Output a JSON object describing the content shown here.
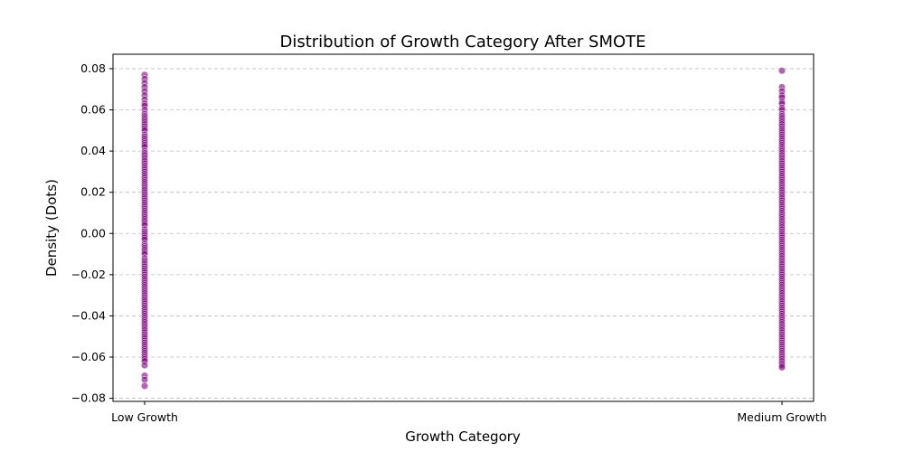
{
  "chart_data": {
    "type": "scatter",
    "title": "Distribution of Growth Category After SMOTE",
    "xlabel": "Growth Category",
    "ylabel": "Density (Dots)",
    "categories": [
      "Low Growth",
      "Medium Growth"
    ],
    "ylim": [
      -0.0815,
      0.087
    ],
    "yticks": [
      0.08,
      0.06,
      0.04,
      0.02,
      0.0,
      -0.02,
      -0.04,
      -0.06,
      -0.08
    ],
    "ytick_labels": [
      "0.08",
      "0.06",
      "0.04",
      "0.02",
      "0.00",
      "−0.02",
      "−0.04",
      "−0.06",
      "−0.08"
    ],
    "grid": "y-dashed",
    "marker_color": "#800080",
    "series": [
      {
        "category": "Low Growth",
        "values": [
          0.077,
          0.075,
          0.073,
          0.071,
          0.069,
          0.067,
          0.065,
          0.063,
          0.062,
          0.06,
          0.058,
          0.057,
          0.056,
          0.055,
          0.054,
          0.053,
          0.052,
          0.051,
          0.05,
          0.048,
          0.047,
          0.046,
          0.045,
          0.044,
          0.043,
          0.042,
          0.04,
          0.039,
          0.038,
          0.037,
          0.036,
          0.035,
          0.034,
          0.033,
          0.032,
          0.031,
          0.03,
          0.029,
          0.028,
          0.027,
          0.026,
          0.025,
          0.024,
          0.023,
          0.022,
          0.021,
          0.02,
          0.019,
          0.018,
          0.017,
          0.016,
          0.015,
          0.014,
          0.013,
          0.012,
          0.011,
          0.01,
          0.009,
          0.008,
          0.007,
          0.006,
          0.005,
          0.004,
          0.002,
          0.001,
          0.0,
          -0.001,
          -0.002,
          -0.003,
          -0.005,
          -0.006,
          -0.007,
          -0.008,
          -0.009,
          -0.01,
          -0.012,
          -0.013,
          -0.014,
          -0.015,
          -0.016,
          -0.017,
          -0.018,
          -0.019,
          -0.02,
          -0.021,
          -0.022,
          -0.023,
          -0.024,
          -0.025,
          -0.026,
          -0.027,
          -0.028,
          -0.029,
          -0.03,
          -0.031,
          -0.032,
          -0.033,
          -0.034,
          -0.035,
          -0.036,
          -0.037,
          -0.038,
          -0.039,
          -0.04,
          -0.041,
          -0.042,
          -0.043,
          -0.044,
          -0.045,
          -0.046,
          -0.047,
          -0.048,
          -0.049,
          -0.05,
          -0.051,
          -0.052,
          -0.053,
          -0.054,
          -0.055,
          -0.056,
          -0.057,
          -0.058,
          -0.059,
          -0.06,
          -0.061,
          -0.062,
          -0.064,
          -0.069,
          -0.071,
          -0.074
        ]
      },
      {
        "category": "Medium Growth",
        "values": [
          0.079,
          0.071,
          0.069,
          0.067,
          0.066,
          0.064,
          0.063,
          0.061,
          0.06,
          0.058,
          0.057,
          0.056,
          0.055,
          0.054,
          0.053,
          0.052,
          0.051,
          0.05,
          0.049,
          0.048,
          0.047,
          0.046,
          0.045,
          0.044,
          0.043,
          0.042,
          0.041,
          0.04,
          0.039,
          0.038,
          0.037,
          0.036,
          0.035,
          0.034,
          0.033,
          0.032,
          0.031,
          0.03,
          0.029,
          0.028,
          0.027,
          0.026,
          0.025,
          0.024,
          0.023,
          0.022,
          0.021,
          0.02,
          0.019,
          0.018,
          0.017,
          0.016,
          0.015,
          0.014,
          0.013,
          0.012,
          0.011,
          0.01,
          0.009,
          0.008,
          0.007,
          0.006,
          0.005,
          0.004,
          0.003,
          0.002,
          0.001,
          0.0,
          -0.001,
          -0.002,
          -0.003,
          -0.004,
          -0.005,
          -0.006,
          -0.007,
          -0.008,
          -0.009,
          -0.01,
          -0.011,
          -0.012,
          -0.013,
          -0.014,
          -0.015,
          -0.016,
          -0.017,
          -0.018,
          -0.019,
          -0.02,
          -0.021,
          -0.022,
          -0.023,
          -0.024,
          -0.025,
          -0.026,
          -0.027,
          -0.028,
          -0.029,
          -0.03,
          -0.031,
          -0.032,
          -0.033,
          -0.034,
          -0.035,
          -0.036,
          -0.037,
          -0.038,
          -0.039,
          -0.04,
          -0.041,
          -0.042,
          -0.043,
          -0.044,
          -0.045,
          -0.046,
          -0.047,
          -0.048,
          -0.049,
          -0.05,
          -0.051,
          -0.052,
          -0.053,
          -0.054,
          -0.055,
          -0.056,
          -0.057,
          -0.058,
          -0.059,
          -0.06,
          -0.061,
          -0.062,
          -0.063,
          -0.064,
          -0.065
        ]
      }
    ]
  }
}
